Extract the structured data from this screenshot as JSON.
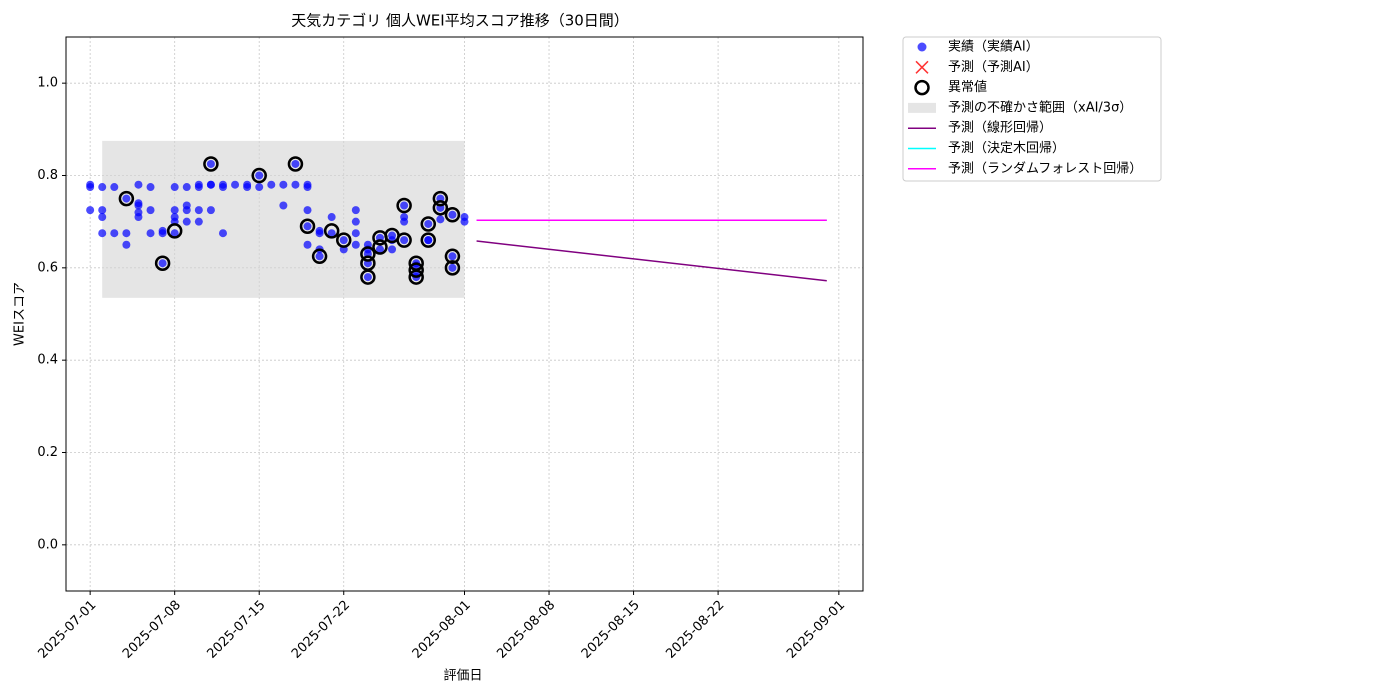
{
  "chart_data": {
    "type": "scatter",
    "title": "天気カテゴリ 個人WEI平均スコア推移（30日間）",
    "x_label": "評価日",
    "y_label": "WEIスコア",
    "xlim": [
      "2025-06-29",
      "2025-09-03"
    ],
    "ylim": [
      -0.1,
      1.1
    ],
    "xticks": [
      "2025-07-01",
      "2025-07-08",
      "2025-07-15",
      "2025-07-22",
      "2025-08-01",
      "2025-08-08",
      "2025-08-15",
      "2025-08-22",
      "2025-09-01"
    ],
    "yticks": [
      {
        "value": 0,
        "label": "0.0"
      },
      0.2,
      0.4,
      0.6,
      0.8,
      {
        "value": 1,
        "label": "1.0"
      }
    ],
    "grid": true,
    "legend": "outside-upper-right",
    "series": [
      {
        "name": "実績（実績AI）",
        "type": "scatter",
        "color": "#0000ff",
        "x": [
          "2025-07-01",
          "2025-07-01",
          "2025-07-01",
          "2025-07-02",
          "2025-07-02",
          "2025-07-02",
          "2025-07-02",
          "2025-07-03",
          "2025-07-03",
          "2025-07-04",
          "2025-07-04",
          "2025-07-04",
          "2025-07-05",
          "2025-07-05",
          "2025-07-05",
          "2025-07-05",
          "2025-07-05",
          "2025-07-06",
          "2025-07-06",
          "2025-07-06",
          "2025-07-07",
          "2025-07-07",
          "2025-07-07",
          "2025-07-08",
          "2025-07-08",
          "2025-07-08",
          "2025-07-08",
          "2025-07-08",
          "2025-07-09",
          "2025-07-09",
          "2025-07-09",
          "2025-07-09",
          "2025-07-10",
          "2025-07-10",
          "2025-07-10",
          "2025-07-10",
          "2025-07-11",
          "2025-07-11",
          "2025-07-11",
          "2025-07-11",
          "2025-07-12",
          "2025-07-12",
          "2025-07-12",
          "2025-07-13",
          "2025-07-14",
          "2025-07-14",
          "2025-07-15",
          "2025-07-15",
          "2025-07-16",
          "2025-07-17",
          "2025-07-17",
          "2025-07-18",
          "2025-07-18",
          "2025-07-19",
          "2025-07-19",
          "2025-07-19",
          "2025-07-19",
          "2025-07-19",
          "2025-07-20",
          "2025-07-20",
          "2025-07-20",
          "2025-07-20",
          "2025-07-21",
          "2025-07-21",
          "2025-07-22",
          "2025-07-22",
          "2025-07-23",
          "2025-07-23",
          "2025-07-23",
          "2025-07-23",
          "2025-07-24",
          "2025-07-24",
          "2025-07-24",
          "2025-07-24",
          "2025-07-24",
          "2025-07-25",
          "2025-07-25",
          "2025-07-26",
          "2025-07-26",
          "2025-07-26",
          "2025-07-27",
          "2025-07-27",
          "2025-07-27",
          "2025-07-27",
          "2025-07-28",
          "2025-07-28",
          "2025-07-28",
          "2025-07-28",
          "2025-07-29",
          "2025-07-29",
          "2025-07-29",
          "2025-07-30",
          "2025-07-30",
          "2025-07-30",
          "2025-07-31",
          "2025-07-31",
          "2025-07-31",
          "2025-08-01",
          "2025-08-01"
        ],
        "values": [
          0.775,
          0.78,
          0.725,
          0.775,
          0.71,
          0.675,
          0.725,
          0.775,
          0.675,
          0.675,
          0.65,
          0.75,
          0.74,
          0.71,
          0.78,
          0.735,
          0.72,
          0.775,
          0.725,
          0.675,
          0.61,
          0.675,
          0.68,
          0.775,
          0.725,
          0.71,
          0.675,
          0.7,
          0.775,
          0.735,
          0.725,
          0.7,
          0.775,
          0.78,
          0.7,
          0.725,
          0.78,
          0.725,
          0.825,
          0.78,
          0.78,
          0.775,
          0.675,
          0.78,
          0.775,
          0.78,
          0.8,
          0.775,
          0.78,
          0.78,
          0.735,
          0.825,
          0.78,
          0.775,
          0.78,
          0.725,
          0.69,
          0.65,
          0.625,
          0.675,
          0.68,
          0.64,
          0.71,
          0.675,
          0.66,
          0.64,
          0.725,
          0.7,
          0.675,
          0.65,
          0.58,
          0.63,
          0.61,
          0.64,
          0.65,
          0.665,
          0.64,
          0.67,
          0.66,
          0.64,
          0.735,
          0.71,
          0.7,
          0.66,
          0.61,
          0.58,
          0.59,
          0.605,
          0.66,
          0.695,
          0.66,
          0.75,
          0.73,
          0.705,
          0.715,
          0.625,
          0.6,
          0.71,
          0.7
        ]
      },
      {
        "name": "予測（予測AI）",
        "type": "cross",
        "color": "#ff0000",
        "x": [],
        "values": []
      },
      {
        "name": "異常値",
        "type": "ring",
        "color": "#000000",
        "x": [
          "2025-07-04",
          "2025-07-07",
          "2025-07-08",
          "2025-07-11",
          "2025-07-15",
          "2025-07-18",
          "2025-07-19",
          "2025-07-20",
          "2025-07-21",
          "2025-07-22",
          "2025-07-24",
          "2025-07-24",
          "2025-07-24",
          "2025-07-25",
          "2025-07-25",
          "2025-07-26",
          "2025-07-27",
          "2025-07-27",
          "2025-07-28",
          "2025-07-28",
          "2025-07-28",
          "2025-07-29",
          "2025-07-29",
          "2025-07-30",
          "2025-07-30",
          "2025-07-31",
          "2025-07-31",
          "2025-07-31"
        ],
        "values": [
          0.75,
          0.61,
          0.68,
          0.825,
          0.8,
          0.825,
          0.69,
          0.625,
          0.68,
          0.66,
          0.58,
          0.63,
          0.61,
          0.645,
          0.665,
          0.67,
          0.735,
          0.66,
          0.61,
          0.58,
          0.595,
          0.66,
          0.695,
          0.75,
          0.73,
          0.715,
          0.625,
          0.6
        ]
      },
      {
        "name": "予測の不確かさ範囲（xAI/3σ）",
        "type": "band",
        "color": "#d3d3d3",
        "x": [
          "2025-07-02",
          "2025-08-01"
        ],
        "values": [
          0.535,
          0.875
        ]
      },
      {
        "name": "予測（線形回帰）",
        "type": "line",
        "color": "#800080",
        "x": [
          "2025-08-02",
          "2025-08-31"
        ],
        "values": [
          0.658,
          0.572
        ]
      },
      {
        "name": "予測（決定木回帰）",
        "type": "line",
        "color": "#00ffff",
        "x": [
          "2025-08-02",
          "2025-08-31"
        ],
        "values": [
          0.703,
          0.703
        ]
      },
      {
        "name": "予測（ランダムフォレスト回帰）",
        "type": "line",
        "color": "#ff00ff",
        "x": [
          "2025-08-02",
          "2025-08-31"
        ],
        "values": [
          0.703,
          0.703
        ]
      }
    ]
  }
}
